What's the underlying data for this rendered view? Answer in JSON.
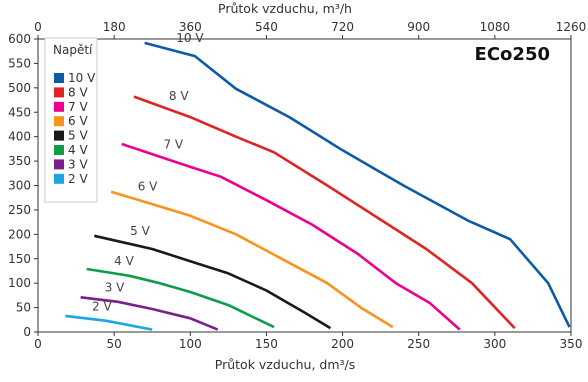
{
  "chart_data": {
    "type": "line",
    "badge": "ECo250",
    "xlabel_bottom": "Průtok vzduchu, dm³/s",
    "xlabel_top": "Průtok vzduchu, m³/h",
    "ylabel": "",
    "xlim": [
      0,
      350
    ],
    "ylim": [
      0,
      600
    ],
    "x_ticks_bottom": [
      "0",
      "50",
      "100",
      "150",
      "200",
      "250",
      "300",
      "350"
    ],
    "x_ticks_top": [
      "0",
      "180",
      "360",
      "540",
      "720",
      "900",
      "1080",
      "1260"
    ],
    "y_ticks": [
      "0",
      "50",
      "100",
      "150",
      "200",
      "250",
      "300",
      "350",
      "400",
      "450",
      "500",
      "550",
      "600"
    ],
    "grid": false,
    "legend": {
      "title": "Napětí",
      "placement": "top-left"
    },
    "series": [
      {
        "name": "10 V",
        "label": "10 V",
        "color": "#0d5aa7",
        "points": [
          [
            70,
            592
          ],
          [
            103,
            565
          ],
          [
            130,
            498
          ],
          [
            165,
            440
          ],
          [
            200,
            372
          ],
          [
            240,
            300
          ],
          [
            283,
            227
          ],
          [
            310,
            190
          ],
          [
            335,
            100
          ],
          [
            349,
            10
          ]
        ]
      },
      {
        "name": "8 V",
        "label": "8 V",
        "color": "#e02424",
        "points": [
          [
            63,
            482
          ],
          [
            100,
            440
          ],
          [
            130,
            400
          ],
          [
            155,
            368
          ],
          [
            190,
            300
          ],
          [
            220,
            240
          ],
          [
            255,
            170
          ],
          [
            285,
            100
          ],
          [
            313,
            8
          ]
        ]
      },
      {
        "name": "7 V",
        "label": "7 V",
        "color": "#ec008c",
        "points": [
          [
            55,
            385
          ],
          [
            100,
            338
          ],
          [
            120,
            318
          ],
          [
            150,
            270
          ],
          [
            180,
            220
          ],
          [
            210,
            160
          ],
          [
            235,
            100
          ],
          [
            257,
            60
          ],
          [
            277,
            5
          ]
        ]
      },
      {
        "name": "6 V",
        "label": "6 V",
        "color": "#f7941d",
        "points": [
          [
            48,
            287
          ],
          [
            75,
            262
          ],
          [
            100,
            238
          ],
          [
            130,
            200
          ],
          [
            160,
            150
          ],
          [
            190,
            100
          ],
          [
            212,
            50
          ],
          [
            233,
            10
          ]
        ]
      },
      {
        "name": "5 V",
        "label": "5 V",
        "color": "#1a1a1a",
        "points": [
          [
            37,
            197
          ],
          [
            75,
            170
          ],
          [
            100,
            145
          ],
          [
            125,
            120
          ],
          [
            150,
            85
          ],
          [
            175,
            40
          ],
          [
            192,
            8
          ]
        ]
      },
      {
        "name": "4 V",
        "label": "4 V",
        "color": "#0f9d4a",
        "points": [
          [
            32,
            129
          ],
          [
            60,
            115
          ],
          [
            80,
            100
          ],
          [
            100,
            82
          ],
          [
            125,
            55
          ],
          [
            155,
            10
          ]
        ]
      },
      {
        "name": "3 V",
        "label": "3 V",
        "color": "#7b1f8c",
        "points": [
          [
            28,
            71
          ],
          [
            52,
            62
          ],
          [
            75,
            47
          ],
          [
            100,
            28
          ],
          [
            118,
            5
          ]
        ]
      },
      {
        "name": "2 V",
        "label": "2 V",
        "color": "#1ba7e1",
        "points": [
          [
            18,
            33
          ],
          [
            45,
            23
          ],
          [
            75,
            5
          ]
        ]
      }
    ]
  }
}
